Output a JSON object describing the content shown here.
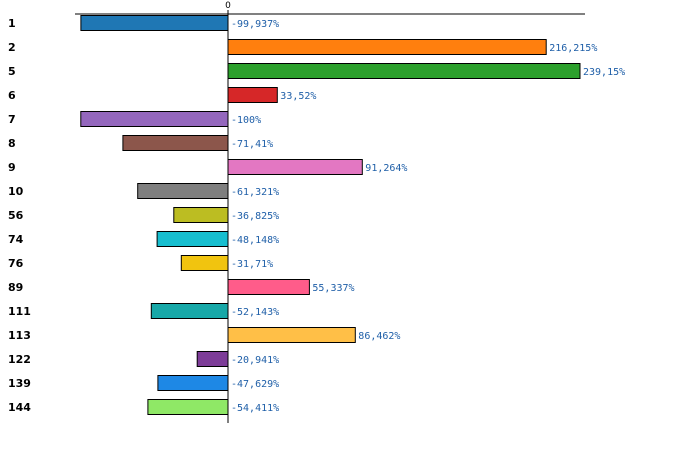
{
  "chart_data": {
    "type": "bar",
    "orientation": "horizontal",
    "title": "",
    "xlabel": "",
    "ylabel": "",
    "zero_label": "0",
    "xlim": [
      -100,
      239.15
    ],
    "grid": false,
    "categories": [
      "1",
      "2",
      "5",
      "6",
      "7",
      "8",
      "9",
      "10",
      "56",
      "74",
      "76",
      "89",
      "111",
      "113",
      "122",
      "139",
      "144"
    ],
    "values": [
      -99.937,
      216.215,
      239.15,
      33.52,
      -100,
      -71.41,
      91.264,
      -61.321,
      -36.825,
      -48.148,
      -31.71,
      55.337,
      -52.143,
      86.462,
      -20.941,
      -47.629,
      -54.411
    ],
    "value_labels": [
      "-99,937%",
      "216,215%",
      "239,15%",
      "33,52%",
      "-100%",
      "-71,41%",
      "91,264%",
      "-61,321%",
      "-36,825%",
      "-48,148%",
      "-31,71%",
      "55,337%",
      "-52,143%",
      "86,462%",
      "-20,941%",
      "-47,629%",
      "-54,411%"
    ],
    "colors": [
      "#1f77b4",
      "#ff7f0e",
      "#2ca02c",
      "#d62728",
      "#9467bd",
      "#8c564b",
      "#e377c2",
      "#7f7f7f",
      "#bcbd22",
      "#17becf",
      "#f1c40f",
      "#ff5c8a",
      "#17a8a8",
      "#ffbf47",
      "#7d3c98",
      "#1e88e5",
      "#8fe866"
    ]
  }
}
